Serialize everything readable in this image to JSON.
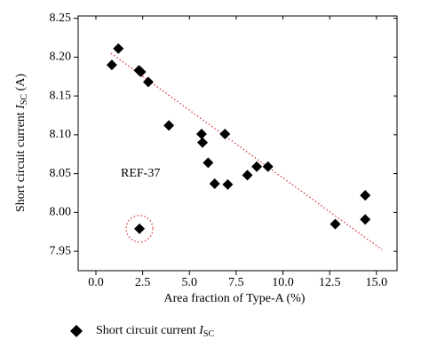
{
  "chart_data": {
    "type": "scatter",
    "xlabel": "Area fraction of Type-A (%)",
    "ylabel": {
      "text": "Short circuit current ",
      "symbol": "I",
      "subscript": "SC",
      "unit": " (A)"
    },
    "annotation": "REF-37",
    "series": [
      {
        "name": {
          "text": "Short circuit current ",
          "symbol": "I",
          "subscript": "SC"
        },
        "color": "#000000",
        "x": [
          0.85,
          1.2,
          2.3,
          2.4,
          2.8,
          3.9,
          5.65,
          5.7,
          6.0,
          6.35,
          6.9,
          7.05,
          8.1,
          8.6,
          9.2,
          12.8,
          14.4,
          14.4,
          2.33
        ],
        "values": [
          8.19,
          8.211,
          8.183,
          8.181,
          8.168,
          8.112,
          8.101,
          8.09,
          8.064,
          8.037,
          8.101,
          8.036,
          8.048,
          8.059,
          8.059,
          7.985,
          8.022,
          7.991,
          7.979
        ]
      }
    ],
    "trend": {
      "color": "#d9383a",
      "x": [
        0.8,
        15.3
      ],
      "values": [
        8.205,
        7.952
      ]
    },
    "highlight": {
      "color": "#d9383a",
      "x": 2.33,
      "y": 7.979
    },
    "xlim": [
      -0.95,
      16.1
    ],
    "ylim": [
      7.925,
      8.253
    ],
    "xticks": [
      {
        "value": 0,
        "label": "0.0"
      },
      2.5,
      {
        "value": 5,
        "label": "5.0"
      },
      7.5,
      {
        "value": 10,
        "label": "10.0"
      },
      12.5,
      {
        "value": 15,
        "label": "15.0"
      }
    ],
    "yticks": [
      7.95,
      {
        "value": 8,
        "label": "8.00"
      },
      8.05,
      {
        "value": 8.1,
        "label": "8.10"
      },
      8.15,
      {
        "value": 8.2,
        "label": "8.20"
      },
      8.25
    ]
  }
}
